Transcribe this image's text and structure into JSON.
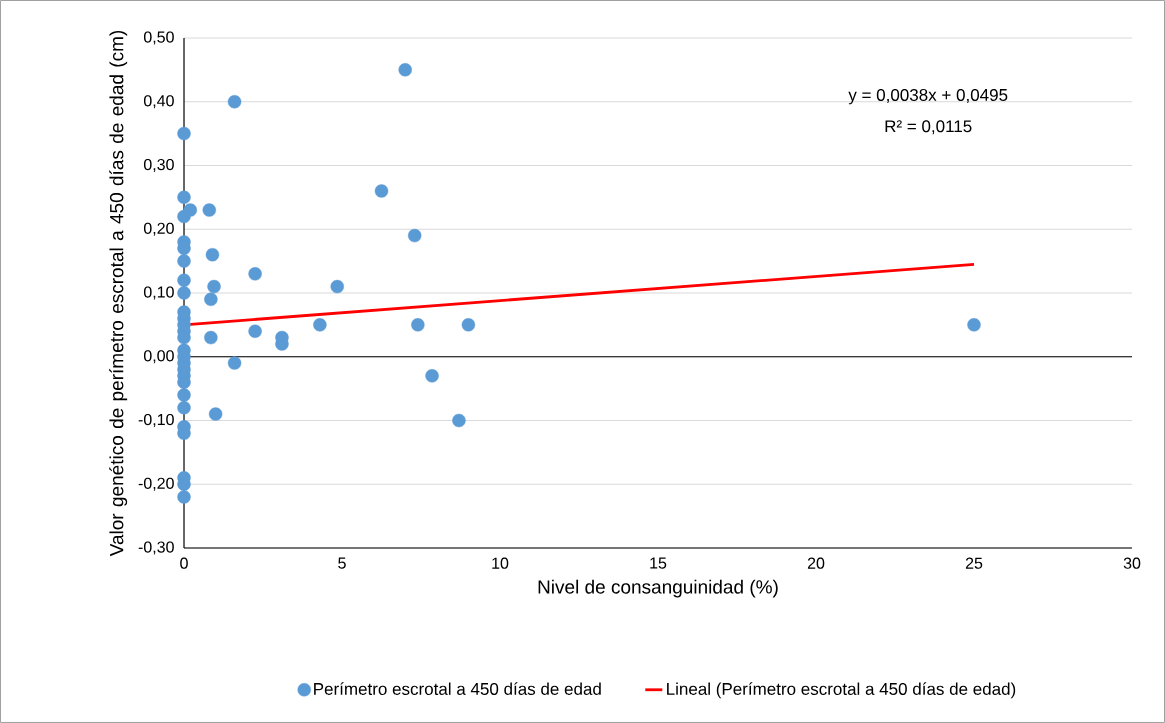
{
  "chart_data": {
    "type": "scatter",
    "xlabel": "Nivel de consanguinidad (%)",
    "ylabel": "Valor genético de perímetro escrotal a 450 días de edad (cm)",
    "series": [
      {
        "name": "Perímetro escrotal a 450 días de edad",
        "color": "#5b9bd5",
        "marker": "circle",
        "x": [
          0,
          0,
          0,
          0,
          0,
          0,
          0,
          0,
          0,
          0,
          0,
          0,
          0,
          0,
          0,
          0,
          0,
          0,
          0,
          0,
          0,
          0,
          0,
          0,
          0,
          0,
          0.2,
          0.8,
          1.6,
          0.9,
          0.95,
          0.85,
          0.85,
          1.0,
          1.6,
          2.25,
          2.25,
          3.1,
          3.1,
          4.3,
          4.85,
          6.25,
          7.0,
          7.3,
          7.4,
          7.85,
          8.7,
          9.0,
          25
        ],
        "values": [
          0.35,
          0.25,
          0.22,
          0.18,
          0.17,
          0.15,
          0.12,
          0.1,
          0.07,
          0.06,
          0.05,
          0.04,
          0.03,
          0.01,
          0.0,
          -0.01,
          -0.02,
          -0.03,
          -0.04,
          -0.06,
          -0.08,
          -0.11,
          -0.12,
          -0.19,
          -0.2,
          -0.22,
          0.23,
          0.23,
          0.4,
          0.16,
          0.11,
          0.09,
          0.03,
          -0.09,
          -0.01,
          0.13,
          0.04,
          0.03,
          0.02,
          0.05,
          0.11,
          0.26,
          0.45,
          0.19,
          0.05,
          -0.03,
          -0.1,
          0.05,
          0.05
        ]
      },
      {
        "name": "Lineal (Perímetro escrotal a 450 días de edad)",
        "type": "line",
        "color": "#ff0000",
        "marker": "none",
        "x": [
          0,
          25
        ],
        "values": [
          0.05,
          0.145
        ]
      }
    ],
    "xlim": [
      0,
      30
    ],
    "xticks": [
      0,
      5,
      10,
      15,
      20,
      25,
      30
    ],
    "ylim": [
      -0.3,
      0.5
    ],
    "yticks": [
      {
        "value": -0.3,
        "label": "-0,30"
      },
      {
        "value": -0.2,
        "label": "-0,20"
      },
      {
        "value": -0.1,
        "label": "-0,10"
      },
      {
        "value": 0,
        "label": "0,00"
      },
      {
        "value": 0.1,
        "label": "0,10"
      },
      {
        "value": 0.2,
        "label": "0,20"
      },
      {
        "value": 0.3,
        "label": "0,30"
      },
      {
        "value": 0.4,
        "label": "0,40"
      },
      {
        "value": 0.5,
        "label": "0,50"
      }
    ],
    "ref_lines": [
      {
        "axis": "y",
        "value": 0,
        "color": "#000000"
      }
    ],
    "annotations": [
      "y = 0,0038x + 0,0495",
      "R² = 0,0115"
    ],
    "grid": "y",
    "legend": "bottom"
  }
}
